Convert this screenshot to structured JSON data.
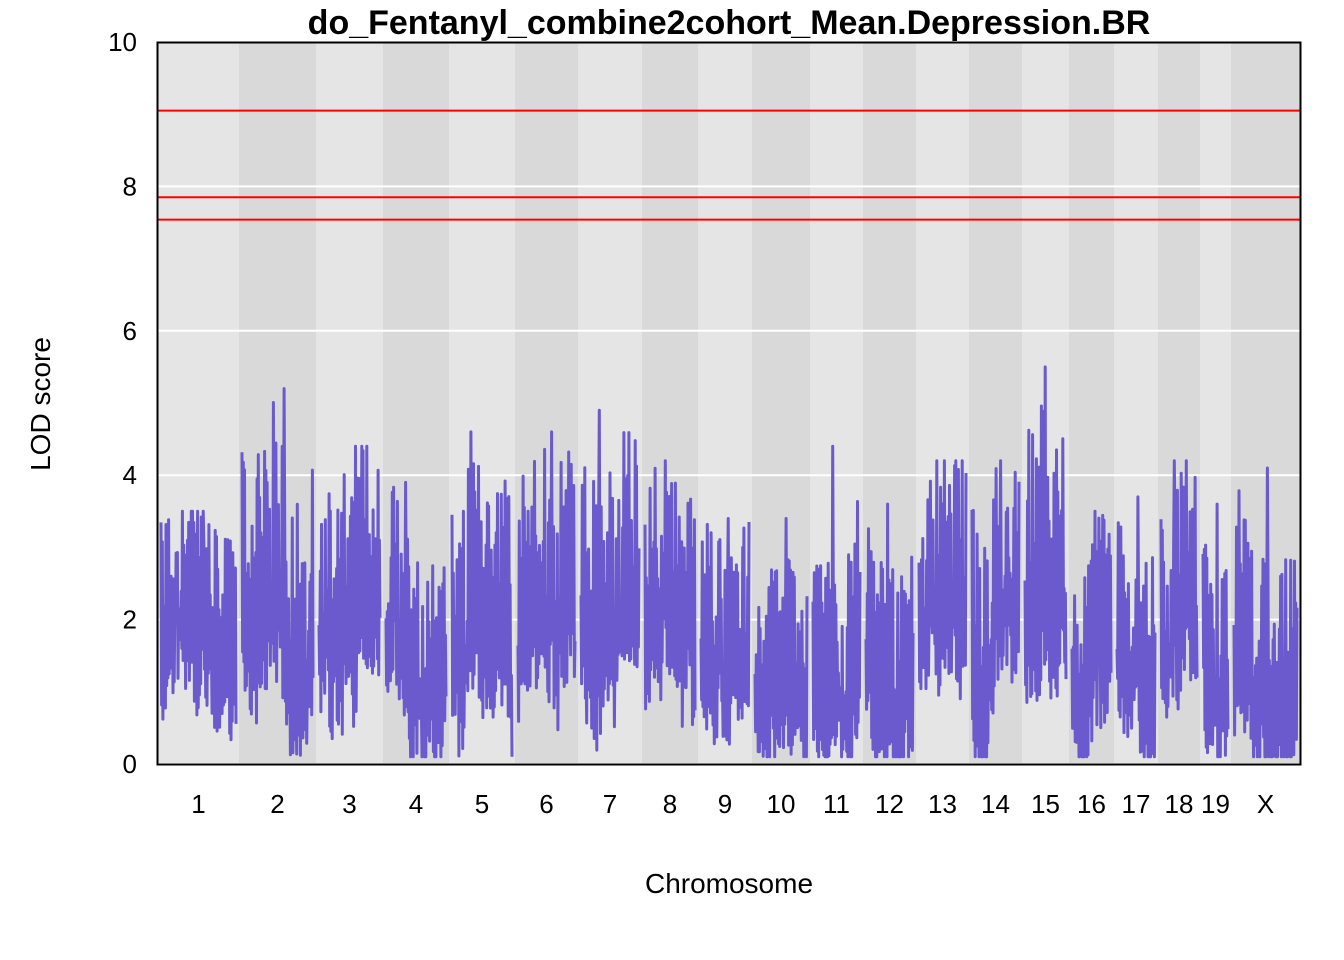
{
  "chart_data": {
    "type": "line",
    "title": "do_Fentanyl_combine2cohort_Mean.Depression.BR",
    "xlabel": "Chromosome",
    "ylabel": "LOD score",
    "ylim": [
      0,
      10
    ],
    "yticks": [
      "0",
      "2",
      "4",
      "6",
      "8",
      "10"
    ],
    "grid": true,
    "line_color": "#6a5acd",
    "threshold_color": "#ff0000",
    "band_colors": [
      "#e5e5e5",
      "#d9d9d9"
    ],
    "thresholds": [
      9.05,
      7.85,
      7.54
    ],
    "chromosomes": [
      {
        "label": "1",
        "max": 3.5
      },
      {
        "label": "2",
        "max": 5.2
      },
      {
        "label": "3",
        "max": 4.4
      },
      {
        "label": "4",
        "max": 3.9
      },
      {
        "label": "5",
        "max": 4.6
      },
      {
        "label": "6",
        "max": 4.6
      },
      {
        "label": "7",
        "max": 4.9
      },
      {
        "label": "8",
        "max": 4.2
      },
      {
        "label": "9",
        "max": 3.4
      },
      {
        "label": "10",
        "max": 3.4
      },
      {
        "label": "11",
        "max": 4.4
      },
      {
        "label": "12",
        "max": 3.6
      },
      {
        "label": "13",
        "max": 4.2
      },
      {
        "label": "14",
        "max": 4.2
      },
      {
        "label": "15",
        "max": 5.5
      },
      {
        "label": "16",
        "max": 3.5
      },
      {
        "label": "17",
        "max": 3.7
      },
      {
        "label": "18",
        "max": 4.2
      },
      {
        "label": "19",
        "max": 3.6
      },
      {
        "label": "X",
        "max": 4.1
      }
    ]
  }
}
